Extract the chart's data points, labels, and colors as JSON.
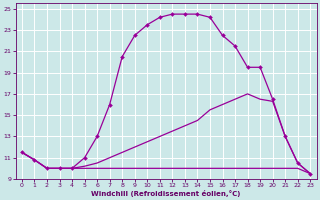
{
  "xlabel": "Windchill (Refroidissement éolien,°C)",
  "xlim": [
    -0.5,
    23.5
  ],
  "ylim": [
    9,
    25.5
  ],
  "xticks": [
    0,
    1,
    2,
    3,
    4,
    5,
    6,
    7,
    8,
    9,
    10,
    11,
    12,
    13,
    14,
    15,
    16,
    17,
    18,
    19,
    20,
    21,
    22,
    23
  ],
  "yticks": [
    9,
    11,
    13,
    15,
    17,
    19,
    21,
    23,
    25
  ],
  "line_color": "#990099",
  "bg_color": "#cce8e8",
  "grid_color": "#ffffff",
  "line_flat": {
    "x": [
      0,
      1,
      2,
      3,
      4,
      5,
      6,
      7,
      8,
      9,
      10,
      11,
      12,
      13,
      14,
      15,
      16,
      17,
      18,
      19,
      20,
      21,
      22,
      23
    ],
    "y": [
      11.5,
      10.8,
      10.0,
      10.0,
      10.0,
      10.0,
      10.0,
      10.0,
      10.0,
      10.0,
      10.0,
      10.0,
      10.0,
      10.0,
      10.0,
      10.0,
      10.0,
      10.0,
      10.0,
      10.0,
      10.0,
      10.0,
      10.0,
      9.5
    ],
    "marker": false
  },
  "line_diag": {
    "x": [
      0,
      1,
      2,
      3,
      4,
      5,
      6,
      7,
      8,
      9,
      10,
      11,
      12,
      13,
      14,
      15,
      16,
      17,
      18,
      19,
      20,
      21,
      22,
      23
    ],
    "y": [
      11.5,
      10.8,
      10.0,
      10.0,
      10.0,
      10.2,
      10.5,
      11.0,
      11.5,
      12.0,
      12.5,
      13.0,
      13.5,
      14.0,
      14.5,
      15.5,
      16.0,
      16.5,
      17.0,
      16.5,
      16.3,
      13.0,
      10.5,
      9.5
    ],
    "marker": false
  },
  "line_curve": {
    "x": [
      0,
      1,
      2,
      3,
      4,
      5,
      6,
      7,
      8,
      9,
      10,
      11,
      12,
      13,
      14,
      15,
      16,
      17,
      18,
      19,
      20,
      21,
      22,
      23
    ],
    "y": [
      11.5,
      10.8,
      10.0,
      10.0,
      10.0,
      11.0,
      13.0,
      16.0,
      20.5,
      22.5,
      23.5,
      24.2,
      24.5,
      24.5,
      24.5,
      24.2,
      22.5,
      21.5,
      19.5,
      19.5,
      16.5,
      13.0,
      10.5,
      9.5
    ],
    "marker": true
  }
}
